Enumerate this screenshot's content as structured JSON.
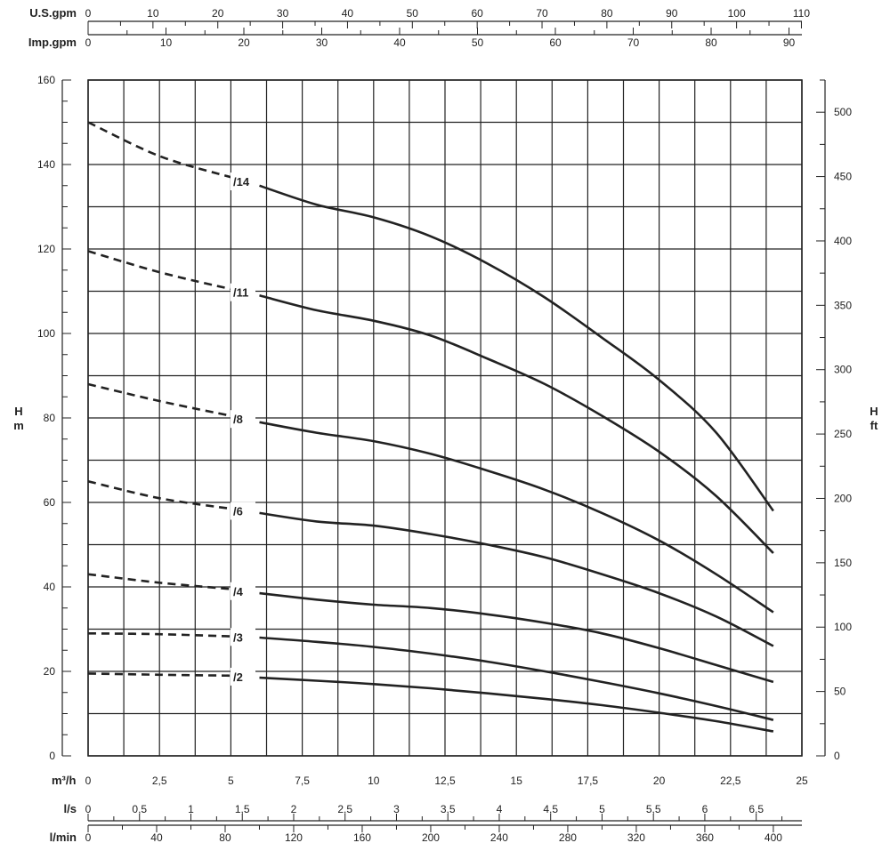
{
  "chart_data": {
    "type": "line",
    "title": "",
    "xlabel": "m³/h",
    "ylabel": "H m",
    "y2label": "H ft",
    "xlim": [
      0,
      25
    ],
    "ylim": [
      0,
      160
    ],
    "y2lim_ft": [
      0,
      525
    ],
    "grid": true,
    "x_ticks": [
      "0",
      "2,5",
      "5",
      "7,5",
      "10",
      "12,5",
      "15",
      "17,5",
      "20",
      "22,5",
      "25"
    ],
    "y_ticks": [
      "0",
      "20",
      "40",
      "60",
      "80",
      "100",
      "120",
      "140",
      "160"
    ],
    "y2_ticks": [
      "0",
      "50",
      "100",
      "150",
      "200",
      "250",
      "300",
      "350",
      "400",
      "450",
      "500"
    ],
    "extra_axes": {
      "usgpm": {
        "label": "U.S.gpm",
        "ticks": [
          "0",
          "10",
          "20",
          "30",
          "40",
          "50",
          "60",
          "70",
          "80",
          "90",
          "100",
          "110"
        ]
      },
      "impgpm": {
        "label": "Imp.gpm",
        "ticks": [
          "0",
          "10",
          "20",
          "30",
          "40",
          "50",
          "60",
          "70",
          "80",
          "90"
        ]
      },
      "ls": {
        "label": "l/s",
        "ticks": [
          "0",
          "0,5",
          "1",
          "1,5",
          "2",
          "2,5",
          "3",
          "3,5",
          "4",
          "4,5",
          "5",
          "5,5",
          "6",
          "6,5"
        ]
      },
      "lmin": {
        "label": "l/min",
        "ticks": [
          "0",
          "40",
          "80",
          "120",
          "160",
          "200",
          "240",
          "280",
          "320",
          "360",
          "400"
        ]
      }
    },
    "series": [
      {
        "name": "/14",
        "dashed": [
          [
            0,
            150
          ],
          [
            2.5,
            142
          ],
          [
            5,
            137
          ]
        ],
        "solid": [
          [
            6,
            135
          ],
          [
            8,
            130.5
          ],
          [
            10,
            127.5
          ],
          [
            12,
            123
          ],
          [
            14,
            116.5
          ],
          [
            16,
            108.5
          ],
          [
            18,
            99
          ],
          [
            20,
            89
          ],
          [
            22,
            76.5
          ],
          [
            24,
            58
          ]
        ]
      },
      {
        "name": "/11",
        "dashed": [
          [
            0,
            119.5
          ],
          [
            2.5,
            114.5
          ],
          [
            5,
            110.5
          ]
        ],
        "solid": [
          [
            6,
            109
          ],
          [
            8,
            105.5
          ],
          [
            10,
            103
          ],
          [
            12,
            99.5
          ],
          [
            14,
            94
          ],
          [
            16,
            88
          ],
          [
            18,
            80.5
          ],
          [
            20,
            72
          ],
          [
            22,
            61.5
          ],
          [
            24,
            48
          ]
        ]
      },
      {
        "name": "/8",
        "dashed": [
          [
            0,
            88
          ],
          [
            2.5,
            84
          ],
          [
            5,
            80.5
          ]
        ],
        "solid": [
          [
            6,
            79
          ],
          [
            8,
            76.5
          ],
          [
            10,
            74.5
          ],
          [
            12,
            71.5
          ],
          [
            14,
            67.5
          ],
          [
            16,
            63
          ],
          [
            18,
            57.5
          ],
          [
            20,
            51
          ],
          [
            22,
            43
          ],
          [
            24,
            34
          ]
        ]
      },
      {
        "name": "/6",
        "dashed": [
          [
            0,
            65
          ],
          [
            2.5,
            61
          ],
          [
            5,
            58.5
          ]
        ],
        "solid": [
          [
            6,
            57.5
          ],
          [
            8,
            55.5
          ],
          [
            10,
            54.5
          ],
          [
            12,
            52.5
          ],
          [
            14,
            50
          ],
          [
            16,
            47
          ],
          [
            18,
            43
          ],
          [
            20,
            38.5
          ],
          [
            22,
            33
          ],
          [
            24,
            26
          ]
        ]
      },
      {
        "name": "/4",
        "dashed": [
          [
            0,
            43
          ],
          [
            2.5,
            41
          ],
          [
            5,
            39.5
          ]
        ],
        "solid": [
          [
            6,
            38.5
          ],
          [
            8,
            37
          ],
          [
            10,
            35.8
          ],
          [
            12,
            35
          ],
          [
            14,
            33.5
          ],
          [
            16,
            31.5
          ],
          [
            18,
            29
          ],
          [
            20,
            25.5
          ],
          [
            22,
            21.5
          ],
          [
            24,
            17.5
          ]
        ]
      },
      {
        "name": "/3",
        "dashed": [
          [
            0,
            29
          ],
          [
            2.5,
            28.8
          ],
          [
            5,
            28.3
          ]
        ],
        "solid": [
          [
            6,
            28
          ],
          [
            8,
            27
          ],
          [
            10,
            25.8
          ],
          [
            12,
            24.2
          ],
          [
            14,
            22.3
          ],
          [
            16,
            20
          ],
          [
            18,
            17.5
          ],
          [
            20,
            14.8
          ],
          [
            22,
            11.8
          ],
          [
            24,
            8.5
          ]
        ]
      },
      {
        "name": "/2",
        "dashed": [
          [
            0,
            19.5
          ],
          [
            2.5,
            19.2
          ],
          [
            5,
            19
          ]
        ],
        "solid": [
          [
            6,
            18.5
          ],
          [
            8,
            17.8
          ],
          [
            10,
            17
          ],
          [
            12,
            16
          ],
          [
            14,
            14.8
          ],
          [
            16,
            13.5
          ],
          [
            18,
            12
          ],
          [
            20,
            10.2
          ],
          [
            22,
            8.2
          ],
          [
            24,
            5.8
          ]
        ]
      }
    ]
  }
}
